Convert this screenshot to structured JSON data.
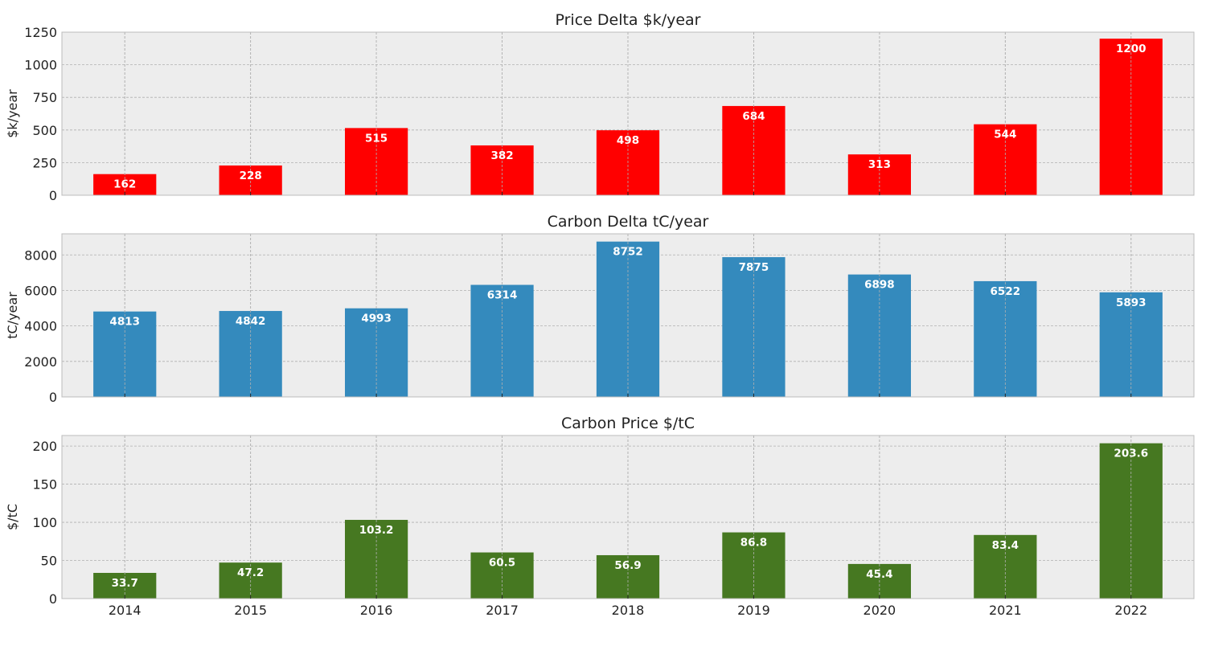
{
  "chart_data": [
    {
      "type": "bar",
      "title": "Price Delta $k/year",
      "ylabel": "$k/year",
      "xlabel": "",
      "categories": [
        "2014",
        "2015",
        "2016",
        "2017",
        "2018",
        "2019",
        "2020",
        "2021",
        "2022"
      ],
      "values": [
        162,
        228,
        515,
        382,
        498,
        684,
        313,
        544,
        1200
      ],
      "value_labels": [
        "162",
        "228",
        "515",
        "382",
        "498",
        "684",
        "313",
        "544",
        "1200"
      ],
      "ylim": [
        0,
        1250
      ],
      "yticks": [
        0,
        250,
        500,
        750,
        1000,
        1250
      ],
      "color": "#ff0000",
      "grid": true
    },
    {
      "type": "bar",
      "title": "Carbon Delta tC/year",
      "ylabel": "tC/year",
      "xlabel": "",
      "categories": [
        "2014",
        "2015",
        "2016",
        "2017",
        "2018",
        "2019",
        "2020",
        "2021",
        "2022"
      ],
      "values": [
        4813,
        4842,
        4993,
        6314,
        8752,
        7875,
        6898,
        6522,
        5893
      ],
      "value_labels": [
        "4813",
        "4842",
        "4993",
        "6314",
        "8752",
        "7875",
        "6898",
        "6522",
        "5893"
      ],
      "ylim": [
        0,
        9190
      ],
      "yticks": [
        0,
        2000,
        4000,
        6000,
        8000
      ],
      "color": "#348abd",
      "grid": true
    },
    {
      "type": "bar",
      "title": "Carbon Price $/tC",
      "ylabel": "$/tC",
      "xlabel": "",
      "categories": [
        "2014",
        "2015",
        "2016",
        "2017",
        "2018",
        "2019",
        "2020",
        "2021",
        "2022"
      ],
      "values": [
        33.7,
        47.2,
        103.2,
        60.5,
        56.9,
        86.8,
        45.4,
        83.4,
        203.6
      ],
      "value_labels": [
        "33.7",
        "47.2",
        "103.2",
        "60.5",
        "56.9",
        "86.8",
        "45.4",
        "83.4",
        "203.6"
      ],
      "ylim": [
        0,
        213.8
      ],
      "yticks": [
        0,
        50,
        100,
        150,
        200
      ],
      "color": "#467821",
      "grid": true
    }
  ]
}
